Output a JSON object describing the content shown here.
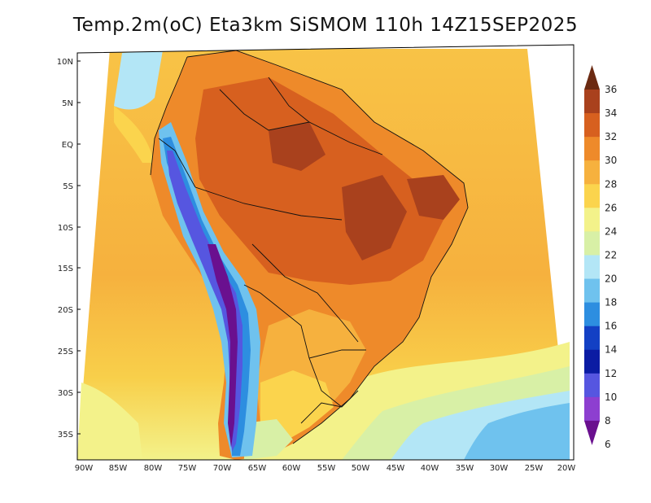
{
  "title": "Temp.2m(oC) Eta3km SiSMOM 110h 14Z15SEP2025",
  "map": {
    "lat_labels": [
      "10N",
      "5N",
      "EQ",
      "5S",
      "10S",
      "15S",
      "20S",
      "25S",
      "30S",
      "35S"
    ],
    "lon_labels": [
      "90W",
      "85W",
      "80W",
      "75W",
      "70W",
      "65W",
      "60W",
      "55W",
      "50W",
      "45W",
      "40W",
      "35W",
      "30W",
      "25W",
      "20W"
    ]
  },
  "colorbar": {
    "levels": [
      "36",
      "34",
      "32",
      "30",
      "28",
      "26",
      "24",
      "22",
      "20",
      "18",
      "16",
      "14",
      "12",
      "10",
      "8",
      "6"
    ],
    "colors": [
      "#6b2a12",
      "#a9411d",
      "#d7601f",
      "#ee8a2a",
      "#f6b13e",
      "#fbd44d",
      "#f3f28a",
      "#d8f0a6",
      "#b3e6f6",
      "#6fc2ee",
      "#2d8ee0",
      "#1340c4",
      "#0b1ca3",
      "#5656e0",
      "#8d3fd0",
      "#6a108f"
    ]
  }
}
